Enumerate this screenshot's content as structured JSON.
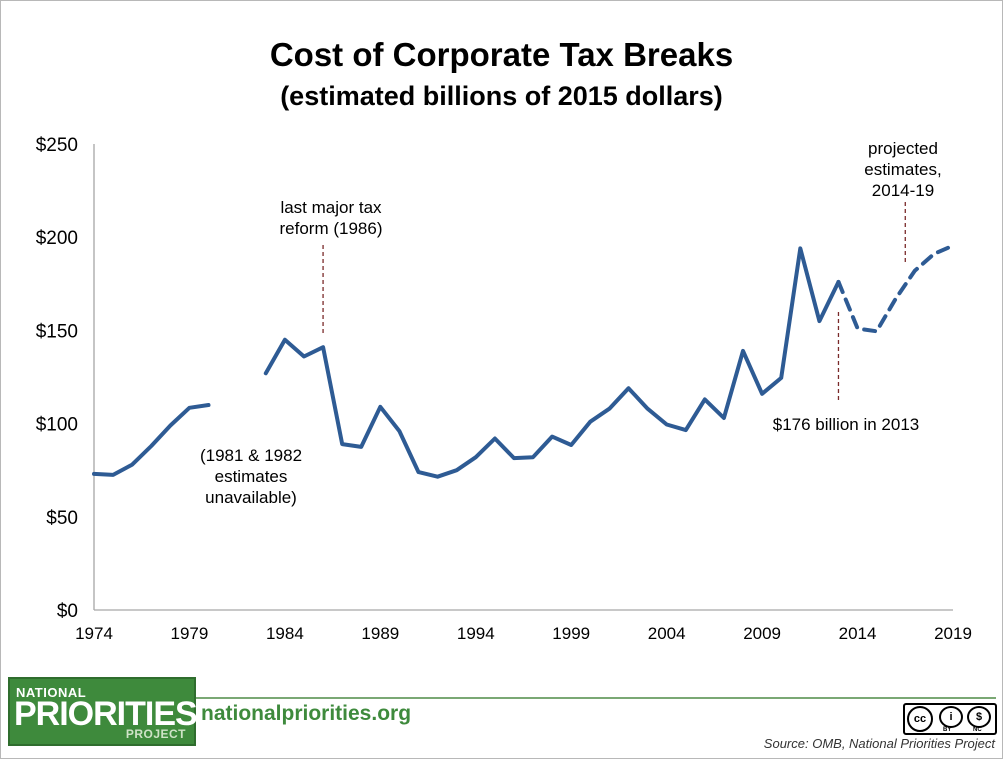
{
  "title": "Cost of Corporate Tax Breaks",
  "subtitle": "(estimated billions of 2015 dollars)",
  "chart_data": {
    "type": "line",
    "title": "Cost of Corporate Tax Breaks",
    "subtitle": "(estimated billions of 2015 dollars)",
    "xlim": [
      1974,
      2019
    ],
    "ylim": [
      0,
      250
    ],
    "xticks": [
      1974,
      1979,
      1984,
      1989,
      1994,
      1999,
      2004,
      2009,
      2014,
      2019
    ],
    "xtick_labels": [
      "1974",
      "1979",
      "1984",
      "1989",
      "1994",
      "1999",
      "2004",
      "2009",
      "2014",
      "2019"
    ],
    "yticks": [
      0,
      50,
      100,
      150,
      200,
      250
    ],
    "ytick_labels": [
      "$0",
      "$50",
      "$100",
      "$150",
      "$200",
      "$250"
    ],
    "grid": false,
    "series": [
      {
        "style": "solid",
        "color": "#2e5b94",
        "x": [
          1974,
          1975,
          1976,
          1977,
          1978,
          1979,
          1980
        ],
        "y": [
          73,
          72.5,
          78,
          88,
          99,
          108.5,
          110
        ]
      },
      {
        "style": "solid",
        "color": "#2e5b94",
        "x": [
          1983,
          1984,
          1985,
          1986,
          1987,
          1988,
          1989,
          1990,
          1991,
          1992,
          1993,
          1994,
          1995,
          1996,
          1997,
          1998,
          1999,
          2000,
          2001,
          2002,
          2003,
          2004,
          2005,
          2006,
          2007,
          2008,
          2009,
          2010,
          2011,
          2012,
          2013
        ],
        "y": [
          127,
          145,
          136,
          141,
          89,
          87.5,
          109,
          96,
          74,
          71.5,
          75,
          82,
          92,
          81.5,
          82,
          93,
          88.5,
          101,
          108,
          119,
          108,
          99.5,
          96.5,
          113,
          103,
          139,
          116,
          124.5,
          194,
          155,
          176
        ]
      },
      {
        "style": "dashed",
        "color": "#2e5b94",
        "x": [
          2013,
          2014,
          2015,
          2016,
          2017,
          2018,
          2019
        ],
        "y": [
          176,
          151,
          149.5,
          167,
          182,
          191,
          195.5
        ]
      }
    ],
    "annotations": [
      {
        "lines": [
          "last major tax",
          "reform (1986)"
        ],
        "x": 1986
      },
      {
        "lines": [
          "(1981 & 1982",
          "estimates",
          "unavailable)"
        ],
        "x": 1981.5
      },
      {
        "lines": [
          "$176 billion in 2013"
        ],
        "x": 2013
      },
      {
        "lines": [
          "projected",
          "estimates,",
          "2014-19"
        ],
        "x": 2016.5
      }
    ]
  },
  "footer": {
    "logo": {
      "line1": "NATIONAL",
      "line2": "PRIORITIES",
      "line3": "PROJECT"
    },
    "website": "nationalpriorities.org",
    "license": {
      "cc": "cc",
      "by": "BY",
      "nc": "NC",
      "by_symbol": "i",
      "nc_symbol": "$"
    },
    "source": "Source: OMB, National Priorities Project"
  }
}
